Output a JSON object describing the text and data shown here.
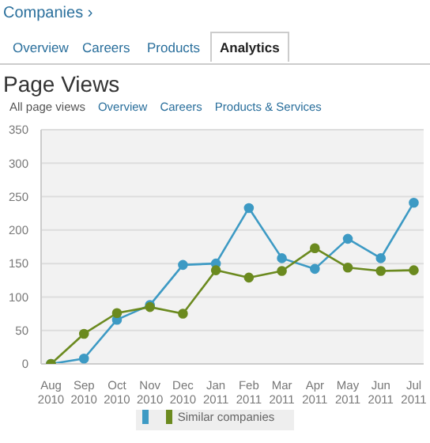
{
  "chart_data": {
    "type": "line",
    "title": "Page Views",
    "annotations": [
      "Companies ›",
      "Overview",
      "Careers",
      "Products",
      "Analytics",
      "All page views",
      "Overview",
      "Careers",
      "Products & Services"
    ],
    "categories": [
      "Aug 2010",
      "Sep 2010",
      "Oct 2010",
      "Nov 2010",
      "Dec 2010",
      "Jan 2011",
      "Feb 2011",
      "Mar 2011",
      "Apr 2011",
      "May 2011",
      "Jun 2011",
      "Jul 2011"
    ],
    "series": [
      {
        "color": "#3d9ac4",
        "values": [
          0,
          8,
          66,
          88,
          148,
          150,
          233,
          158,
          142,
          187,
          158,
          241
        ]
      },
      {
        "name": "Similar companies",
        "color": "#6b8a1f",
        "values": [
          0,
          45,
          76,
          85,
          75,
          140,
          129,
          139,
          173,
          144,
          139,
          140
        ]
      }
    ],
    "ylim": [
      0,
      350
    ],
    "yticks": [
      0,
      50,
      100,
      150,
      200,
      250,
      300,
      350
    ],
    "grid": "y",
    "legend": "bottom",
    "marker": "circle"
  }
}
